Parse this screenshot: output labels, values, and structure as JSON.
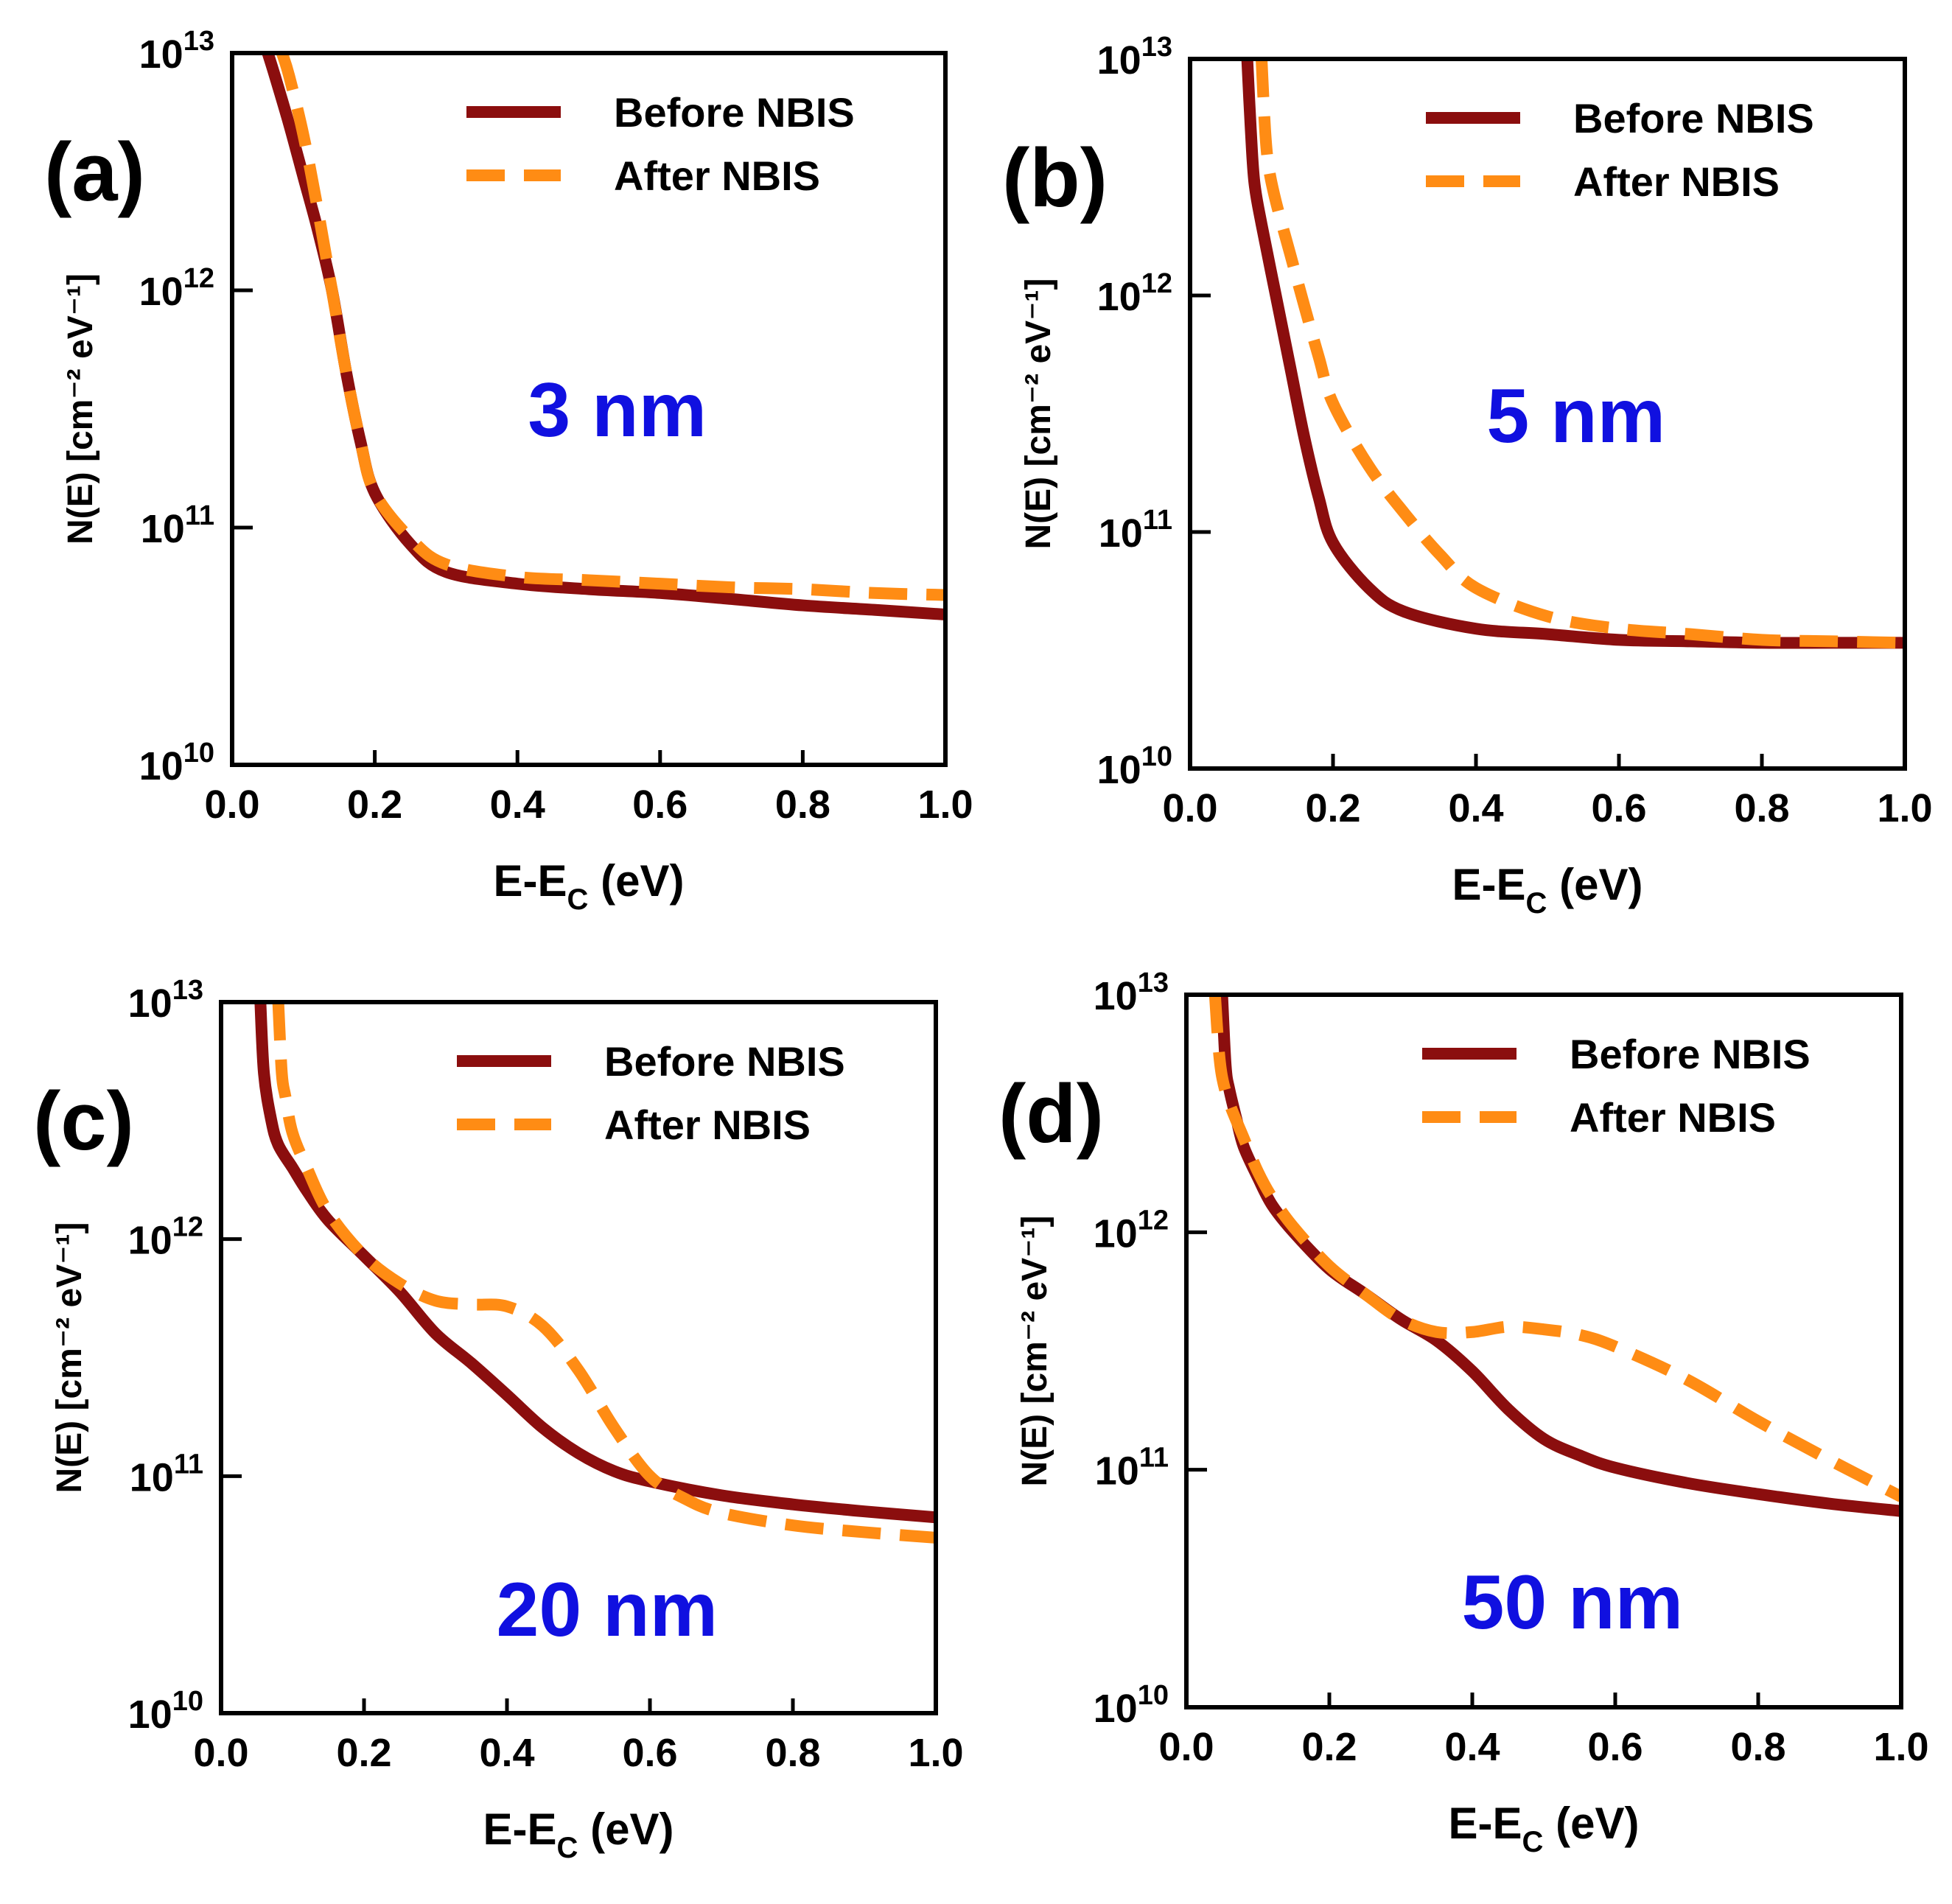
{
  "colors": {
    "before": "#8B0E0E",
    "after": "#FF8C14",
    "annotation": "#1010E0",
    "axis": "#000000"
  },
  "chart_data": [
    {
      "type": "line",
      "panel_label": "(a)",
      "annotation": "3 nm",
      "xlabel_main": "E-E",
      "xlabel_sub": "C",
      "xlabel_tail": " (eV)",
      "ylabel": "N(E) [cm⁻² eV⁻¹]",
      "xlim": [
        0,
        1
      ],
      "ylim": [
        10000000000.0,
        10000000000000.0
      ],
      "yscale": "log",
      "xticks": [
        "0.0",
        "0.2",
        "0.4",
        "0.6",
        "0.8",
        "1.0"
      ],
      "yticks": [
        {
          "base": "10",
          "exp": "10"
        },
        {
          "base": "10",
          "exp": "11"
        },
        {
          "base": "10",
          "exp": "12"
        },
        {
          "base": "10",
          "exp": "13"
        }
      ],
      "legend": {
        "position": "top-right",
        "entries": [
          "Before NBIS",
          "After NBIS"
        ]
      },
      "series": [
        {
          "name": "Before NBIS",
          "style": "solid",
          "x": [
            0.05,
            0.06,
            0.08,
            0.1,
            0.12,
            0.14,
            0.16,
            0.18,
            0.2,
            0.25,
            0.3,
            0.4,
            0.5,
            0.6,
            0.7,
            0.8,
            0.9,
            1.0
          ],
          "y": [
            10000000000000.0,
            8000000000000.0,
            5000000000000.0,
            3000000000000.0,
            1800000000000.0,
            1000000000000.0,
            450000000000.0,
            230000000000.0,
            140000000000.0,
            85000000000.0,
            65000000000.0,
            58000000000.0,
            55000000000.0,
            53000000000.0,
            50000000000.0,
            47000000000.0,
            45000000000.0,
            43000000000.0
          ]
        },
        {
          "name": "After NBIS",
          "style": "dashed",
          "x": [
            0.07,
            0.08,
            0.1,
            0.12,
            0.14,
            0.16,
            0.18,
            0.2,
            0.25,
            0.3,
            0.4,
            0.5,
            0.6,
            0.7,
            0.8,
            0.9,
            1.0
          ],
          "y": [
            10000000000000.0,
            8000000000000.0,
            4500000000000.0,
            2200000000000.0,
            1000000000000.0,
            450000000000.0,
            230000000000.0,
            140000000000.0,
            90000000000.0,
            70000000000.0,
            62000000000.0,
            60000000000.0,
            58000000000.0,
            56000000000.0,
            55000000000.0,
            53000000000.0,
            52000000000.0
          ]
        }
      ]
    },
    {
      "type": "line",
      "panel_label": "(b)",
      "annotation": "5 nm",
      "xlabel_main": "E-E",
      "xlabel_sub": "C",
      "xlabel_tail": " (eV)",
      "ylabel": "N(E) [cm⁻² eV⁻¹]",
      "xlim": [
        0,
        1
      ],
      "ylim": [
        10000000000.0,
        10000000000000.0
      ],
      "yscale": "log",
      "xticks": [
        "0.0",
        "0.2",
        "0.4",
        "0.6",
        "0.8",
        "1.0"
      ],
      "yticks": [
        {
          "base": "10",
          "exp": "10"
        },
        {
          "base": "10",
          "exp": "11"
        },
        {
          "base": "10",
          "exp": "12"
        },
        {
          "base": "10",
          "exp": "13"
        }
      ],
      "legend": {
        "position": "top-right",
        "entries": [
          "Before NBIS",
          "After NBIS"
        ]
      },
      "series": [
        {
          "name": "Before NBIS",
          "style": "solid",
          "x": [
            0.08,
            0.085,
            0.09,
            0.1,
            0.12,
            0.14,
            0.16,
            0.18,
            0.2,
            0.25,
            0.3,
            0.4,
            0.5,
            0.6,
            0.7,
            0.8,
            0.9,
            1.0
          ],
          "y": [
            10000000000000.0,
            5000000000000.0,
            3000000000000.0,
            2000000000000.0,
            1000000000000.0,
            500000000000.0,
            250000000000.0,
            140000000000.0,
            90000000000.0,
            58000000000.0,
            46000000000.0,
            39000000000.0,
            37000000000.0,
            35000000000.0,
            34500000000.0,
            34000000000.0,
            34000000000.0,
            34000000000.0
          ]
        },
        {
          "name": "After NBIS",
          "style": "dashed",
          "x": [
            0.1,
            0.105,
            0.11,
            0.12,
            0.14,
            0.16,
            0.18,
            0.2,
            0.25,
            0.3,
            0.35,
            0.4,
            0.5,
            0.6,
            0.7,
            0.8,
            0.9,
            1.0
          ],
          "y": [
            10000000000000.0,
            5000000000000.0,
            3500000000000.0,
            2500000000000.0,
            1500000000000.0,
            900000000000.0,
            550000000000.0,
            350000000000.0,
            190000000000.0,
            120000000000.0,
            80000000000.0,
            58000000000.0,
            44000000000.0,
            39000000000.0,
            37000000000.0,
            35000000000.0,
            34500000000.0,
            34000000000.0
          ]
        }
      ]
    },
    {
      "type": "line",
      "panel_label": "(c)",
      "annotation": "20 nm",
      "xlabel_main": "E-E",
      "xlabel_sub": "C",
      "xlabel_tail": " (eV)",
      "ylabel": "N(E) [cm⁻² eV⁻¹]",
      "xlim": [
        0,
        1
      ],
      "ylim": [
        10000000000.0,
        10000000000000.0
      ],
      "yscale": "log",
      "xticks": [
        "0.0",
        "0.2",
        "0.4",
        "0.6",
        "0.8",
        "1.0"
      ],
      "yticks": [
        {
          "base": "10",
          "exp": "10"
        },
        {
          "base": "10",
          "exp": "11"
        },
        {
          "base": "10",
          "exp": "12"
        },
        {
          "base": "10",
          "exp": "13"
        }
      ],
      "legend": {
        "position": "top-right",
        "entries": [
          "Before NBIS",
          "After NBIS"
        ]
      },
      "series": [
        {
          "name": "Before NBIS",
          "style": "solid",
          "x": [
            0.055,
            0.06,
            0.07,
            0.08,
            0.1,
            0.12,
            0.15,
            0.2,
            0.25,
            0.3,
            0.35,
            0.4,
            0.45,
            0.5,
            0.55,
            0.6,
            0.7,
            0.8,
            0.9,
            1.0
          ],
          "y": [
            10000000000000.0,
            5000000000000.0,
            3200000000000.0,
            2500000000000.0,
            2000000000000.0,
            1600000000000.0,
            1200000000000.0,
            850000000000.0,
            600000000000.0,
            400000000000.0,
            300000000000.0,
            220000000000.0,
            160000000000.0,
            125000000000.0,
            105000000000.0,
            95000000000.0,
            83000000000.0,
            76000000000.0,
            71000000000.0,
            67000000000.0
          ]
        },
        {
          "name": "After NBIS",
          "style": "dashed",
          "x": [
            0.08,
            0.085,
            0.09,
            0.1,
            0.12,
            0.15,
            0.2,
            0.25,
            0.3,
            0.35,
            0.4,
            0.45,
            0.5,
            0.55,
            0.6,
            0.65,
            0.7,
            0.8,
            0.9,
            1.0
          ],
          "y": [
            10000000000000.0,
            5000000000000.0,
            4000000000000.0,
            2800000000000.0,
            2000000000000.0,
            1300000000000.0,
            850000000000.0,
            650000000000.0,
            550000000000.0,
            530000000000.0,
            520000000000.0,
            430000000000.0,
            280000000000.0,
            160000000000.0,
            100000000000.0,
            80000000000.0,
            70000000000.0,
            62000000000.0,
            58000000000.0,
            55000000000.0
          ]
        }
      ]
    },
    {
      "type": "line",
      "panel_label": "(d)",
      "annotation": "50 nm",
      "xlabel_main": "E-E",
      "xlabel_sub": "C",
      "xlabel_tail": " (eV)",
      "ylabel": "N(E) [cm⁻² eV⁻¹]",
      "xlim": [
        0,
        1
      ],
      "ylim": [
        10000000000.0,
        10000000000000.0
      ],
      "yscale": "log",
      "xticks": [
        "0.0",
        "0.2",
        "0.4",
        "0.6",
        "0.8",
        "1.0"
      ],
      "yticks": [
        {
          "base": "10",
          "exp": "10"
        },
        {
          "base": "10",
          "exp": "11"
        },
        {
          "base": "10",
          "exp": "12"
        },
        {
          "base": "10",
          "exp": "13"
        }
      ],
      "legend": {
        "position": "top-right",
        "entries": [
          "Before NBIS",
          "After NBIS"
        ]
      },
      "series": [
        {
          "name": "Before NBIS",
          "style": "solid",
          "x": [
            0.05,
            0.055,
            0.06,
            0.07,
            0.08,
            0.1,
            0.12,
            0.15,
            0.2,
            0.25,
            0.3,
            0.35,
            0.4,
            0.45,
            0.5,
            0.55,
            0.6,
            0.7,
            0.8,
            0.9,
            1.0
          ],
          "y": [
            10000000000000.0,
            5000000000000.0,
            4000000000000.0,
            3000000000000.0,
            2300000000000.0,
            1700000000000.0,
            1300000000000.0,
            1000000000000.0,
            700000000000.0,
            550000000000.0,
            430000000000.0,
            350000000000.0,
            260000000000.0,
            180000000000.0,
            135000000000.0,
            115000000000.0,
            102000000000.0,
            88000000000.0,
            79000000000.0,
            72000000000.0,
            67000000000.0
          ]
        },
        {
          "name": "After NBIS",
          "style": "dashed",
          "x": [
            0.04,
            0.045,
            0.05,
            0.06,
            0.08,
            0.1,
            0.12,
            0.15,
            0.2,
            0.25,
            0.3,
            0.35,
            0.4,
            0.45,
            0.5,
            0.55,
            0.6,
            0.7,
            0.8,
            0.9,
            1.0
          ],
          "y": [
            10000000000000.0,
            6000000000000.0,
            4500000000000.0,
            3500000000000.0,
            2500000000000.0,
            1800000000000.0,
            1400000000000.0,
            1050000000000.0,
            720000000000.0,
            550000000000.0,
            430000000000.0,
            380000000000.0,
            380000000000.0,
            400000000000.0,
            390000000000.0,
            370000000000.0,
            330000000000.0,
            240000000000.0,
            160000000000.0,
            110000000000.0,
            77000000000.0
          ]
        }
      ]
    }
  ]
}
